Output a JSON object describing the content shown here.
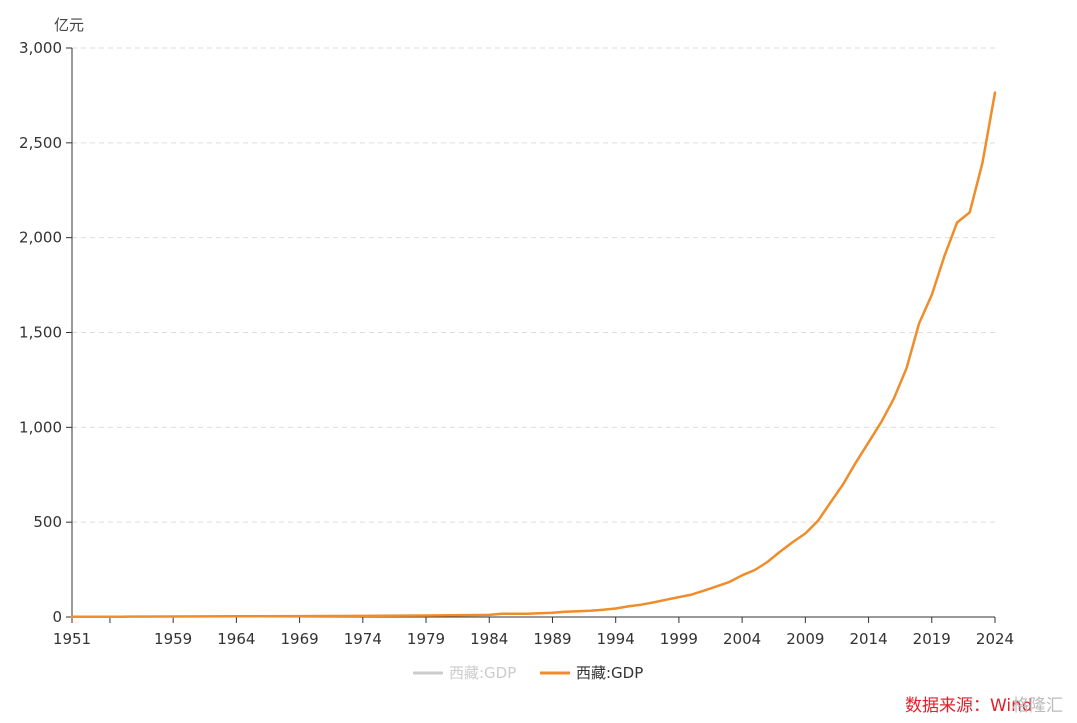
{
  "chart_data": {
    "type": "line",
    "ylabel": "亿元",
    "ylim": [
      0,
      3000
    ],
    "xlim": [
      1951,
      2024
    ],
    "y_ticks": [
      0,
      500,
      1000,
      1500,
      2000,
      2500,
      3000
    ],
    "y_tick_labels": [
      "0",
      "500",
      "1,000",
      "1,500",
      "2,000",
      "2,500",
      "3,000"
    ],
    "x_tick_labels": [
      "1951",
      "1959",
      "1964",
      "1969",
      "1974",
      "1979",
      "1984",
      "1989",
      "1994",
      "1999",
      "2004",
      "2009",
      "2014",
      "2019",
      "2024"
    ],
    "grid": true,
    "legend_position": "bottom-center",
    "legend": [
      {
        "name": "西藏:GDP",
        "color": "#cccccc",
        "inactive": true
      },
      {
        "name": "西藏:GDP",
        "color": "#f08c2a",
        "inactive": false
      }
    ],
    "series": [
      {
        "name": "西藏:GDP",
        "color": "#f08c2a",
        "x": [
          1951,
          1955,
          1959,
          1964,
          1969,
          1974,
          1979,
          1984,
          1985,
          1986,
          1987,
          1988,
          1989,
          1990,
          1991,
          1992,
          1993,
          1994,
          1995,
          1996,
          1997,
          1998,
          1999,
          2000,
          2001,
          2002,
          2003,
          2004,
          2005,
          2006,
          2007,
          2008,
          2009,
          2010,
          2011,
          2012,
          2013,
          2014,
          2015,
          2016,
          2017,
          2018,
          2019,
          2020,
          2021,
          2022,
          2023,
          2024
        ],
        "values": [
          1.3,
          1.8,
          2.5,
          3.5,
          5,
          6,
          8,
          11,
          17,
          17,
          17,
          20,
          22,
          28,
          30,
          33,
          38,
          45,
          56,
          65,
          77,
          91,
          105,
          118,
          139,
          162,
          185,
          220,
          248,
          290,
          345,
          395,
          440,
          507,
          605,
          701,
          815,
          921,
          1027,
          1151,
          1311,
          1548,
          1698,
          1903,
          2080,
          2133,
          2393,
          2765
        ]
      }
    ]
  },
  "source": {
    "label": "数据来源：",
    "name": "Wind"
  },
  "watermark": "格隆汇"
}
